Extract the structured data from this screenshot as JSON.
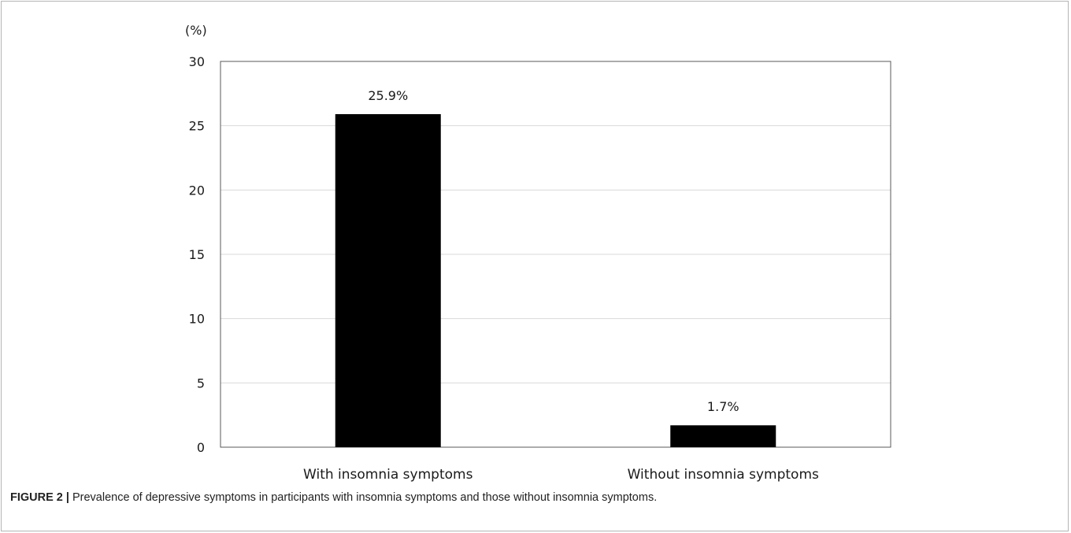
{
  "chart_data": {
    "type": "bar",
    "categories": [
      "With insomnia symptoms",
      "Without insomnia symptoms"
    ],
    "values": [
      25.9,
      1.7
    ],
    "data_labels": [
      "25.9%",
      "1.7%"
    ],
    "ylabel": "(%)",
    "xlabel": "",
    "ylim": [
      0,
      30
    ],
    "yticks": [
      0,
      5,
      10,
      15,
      20,
      25,
      30
    ],
    "grid": true,
    "legend": "none",
    "bar_color": "#000000",
    "grid_color": "#d9d9d9",
    "axis_color": "#595959"
  },
  "caption": {
    "label": "FIGURE 2 |",
    "text": " Prevalence of depressive symptoms in participants with insomnia symptoms and those without insomnia symptoms."
  }
}
